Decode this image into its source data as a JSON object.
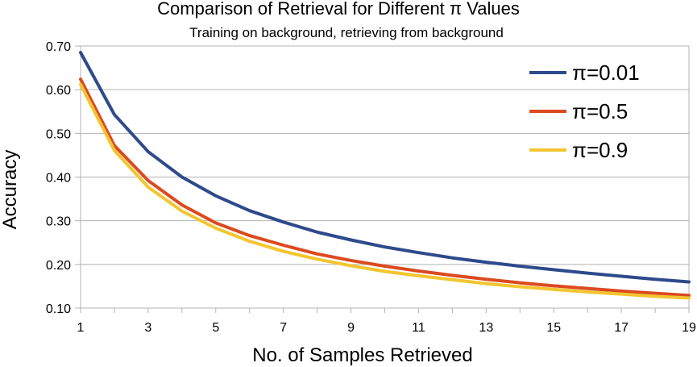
{
  "chart_data": {
    "type": "line",
    "title": "Comparison of Retrieval for Different π Values",
    "subtitle": "Training on background, retrieving from background",
    "xlabel": "No. of Samples Retrieved",
    "ylabel": "Accuracy",
    "x": [
      1,
      2,
      3,
      4,
      5,
      6,
      7,
      8,
      9,
      10,
      11,
      12,
      13,
      14,
      15,
      16,
      17,
      18,
      19
    ],
    "xticks": [
      "1",
      "3",
      "5",
      "7",
      "9",
      "11",
      "13",
      "15",
      "17",
      "19"
    ],
    "xlim": [
      1,
      19
    ],
    "ylim": [
      0.1,
      0.7
    ],
    "yticks": [
      "0.10",
      "0.20",
      "0.30",
      "0.40",
      "0.50",
      "0.60",
      "0.70"
    ],
    "grid": true,
    "legend_position": "top-right",
    "series": [
      {
        "name": "π=0.01",
        "color": "#2e4a8c",
        "values": [
          0.685,
          0.543,
          0.458,
          0.4,
          0.357,
          0.323,
          0.297,
          0.274,
          0.256,
          0.24,
          0.227,
          0.215,
          0.205,
          0.196,
          0.188,
          0.18,
          0.173,
          0.166,
          0.16
        ]
      },
      {
        "name": "π=0.5",
        "color": "#dc4a1f",
        "values": [
          0.624,
          0.472,
          0.392,
          0.336,
          0.295,
          0.266,
          0.244,
          0.224,
          0.209,
          0.196,
          0.185,
          0.175,
          0.166,
          0.158,
          0.151,
          0.145,
          0.139,
          0.134,
          0.129
        ]
      },
      {
        "name": "π=0.9",
        "color": "#f2c530",
        "values": [
          0.612,
          0.461,
          0.377,
          0.322,
          0.283,
          0.253,
          0.23,
          0.212,
          0.197,
          0.184,
          0.174,
          0.165,
          0.156,
          0.149,
          0.143,
          0.137,
          0.132,
          0.127,
          0.123
        ]
      }
    ]
  }
}
